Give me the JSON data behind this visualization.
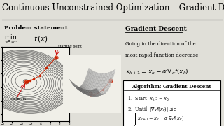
{
  "title": "Continuous Unconstrained Optimization – Gradient Descent",
  "title_fontsize": 8.5,
  "bg_color": "#e0dfd8",
  "left_panel_title": "Problem statement",
  "right_panel_title": "Gradient Descent",
  "right_desc1": "Going in the direction of the",
  "right_desc2": "most rapid function decrease",
  "algo_title": "Algorithm: Gradient Descent",
  "label_starting": "starting point",
  "label_optimum": "optimum",
  "contour_color": "#444444",
  "arrow_color": "#cc0000",
  "panel_bg": "#f0efe8",
  "white": "#ffffff"
}
